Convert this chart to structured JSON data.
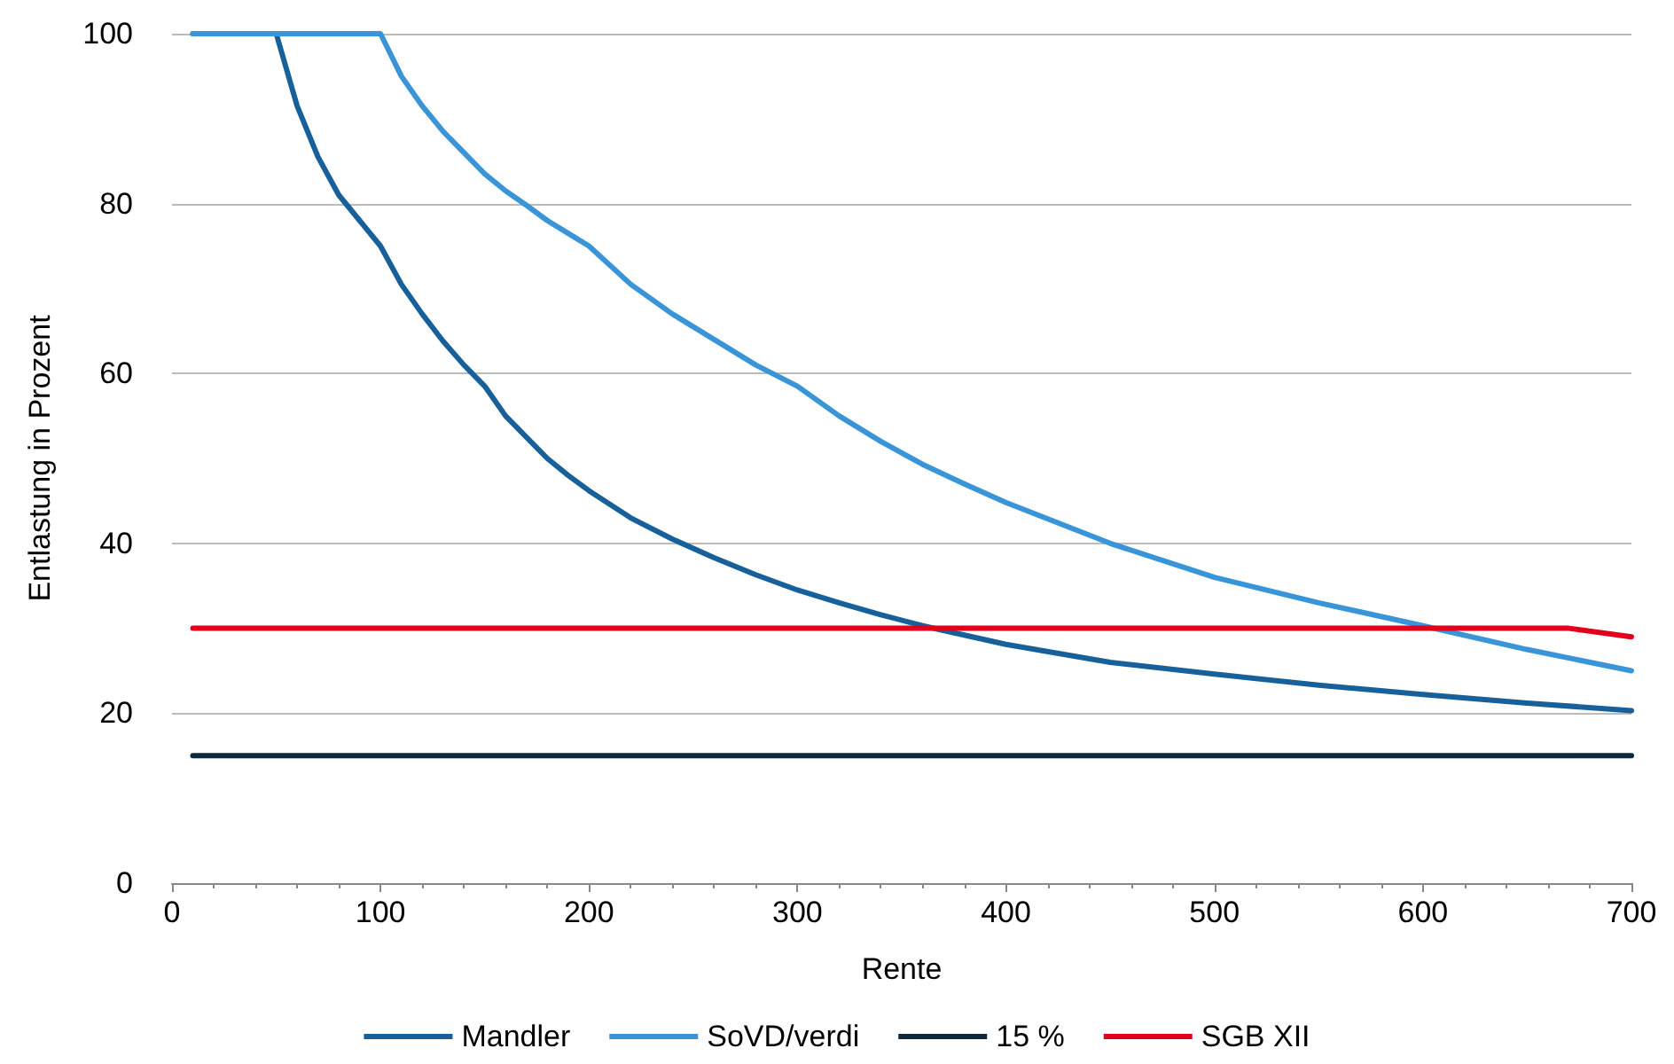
{
  "chart_data": {
    "type": "line",
    "xlabel": "Rente",
    "ylabel": "Entlastung in Prozent",
    "series": [
      {
        "name": "Mandler",
        "color": "#17609a",
        "x": [
          10,
          20,
          30,
          40,
          50,
          60,
          70,
          80,
          90,
          100,
          110,
          120,
          130,
          140,
          150,
          160,
          170,
          180,
          190,
          200,
          220,
          240,
          260,
          280,
          300,
          320,
          340,
          360,
          380,
          400,
          450,
          500,
          550,
          600,
          650,
          700
        ],
        "values": [
          100,
          100,
          100,
          100,
          100,
          91.5,
          85.5,
          81,
          78,
          75,
          70.5,
          67,
          63.8,
          61,
          58.5,
          55,
          52.5,
          50,
          48,
          46.2,
          43,
          40.5,
          38.3,
          36.3,
          34.5,
          33,
          31.6,
          30.3,
          29.2,
          28.1,
          26,
          24.6,
          23.3,
          22.2,
          21.2,
          20.3
        ]
      },
      {
        "name": "SoVD/verdi",
        "color": "#3a94d8",
        "x": [
          10,
          20,
          40,
          60,
          80,
          100,
          110,
          120,
          130,
          140,
          150,
          160,
          170,
          180,
          190,
          200,
          220,
          240,
          260,
          280,
          300,
          320,
          340,
          360,
          380,
          400,
          450,
          500,
          550,
          600,
          650,
          700
        ],
        "values": [
          100,
          100,
          100,
          100,
          100,
          100,
          95,
          91.5,
          88.5,
          86,
          83.5,
          81.5,
          79.8,
          78,
          76.5,
          75,
          70.5,
          67,
          64,
          61,
          58.5,
          55,
          52,
          49.3,
          47,
          44.8,
          40,
          36,
          33,
          30.3,
          27.5,
          25
        ]
      },
      {
        "name": "15 %",
        "color": "#0d2a3c",
        "x": [
          10,
          700
        ],
        "values": [
          15,
          15
        ]
      },
      {
        "name": "SGB XII",
        "color": "#e2001a",
        "x": [
          10,
          670,
          700
        ],
        "values": [
          30,
          30,
          29
        ]
      }
    ],
    "xlim": [
      0,
      700
    ],
    "xticks": [
      0,
      100,
      200,
      300,
      400,
      500,
      600,
      700
    ],
    "ylim": [
      0,
      100
    ],
    "yticks": [
      0,
      20,
      40,
      60,
      80,
      100
    ],
    "grid": "y",
    "legend": "bottom",
    "marker": "none",
    "line_style": "solid"
  }
}
